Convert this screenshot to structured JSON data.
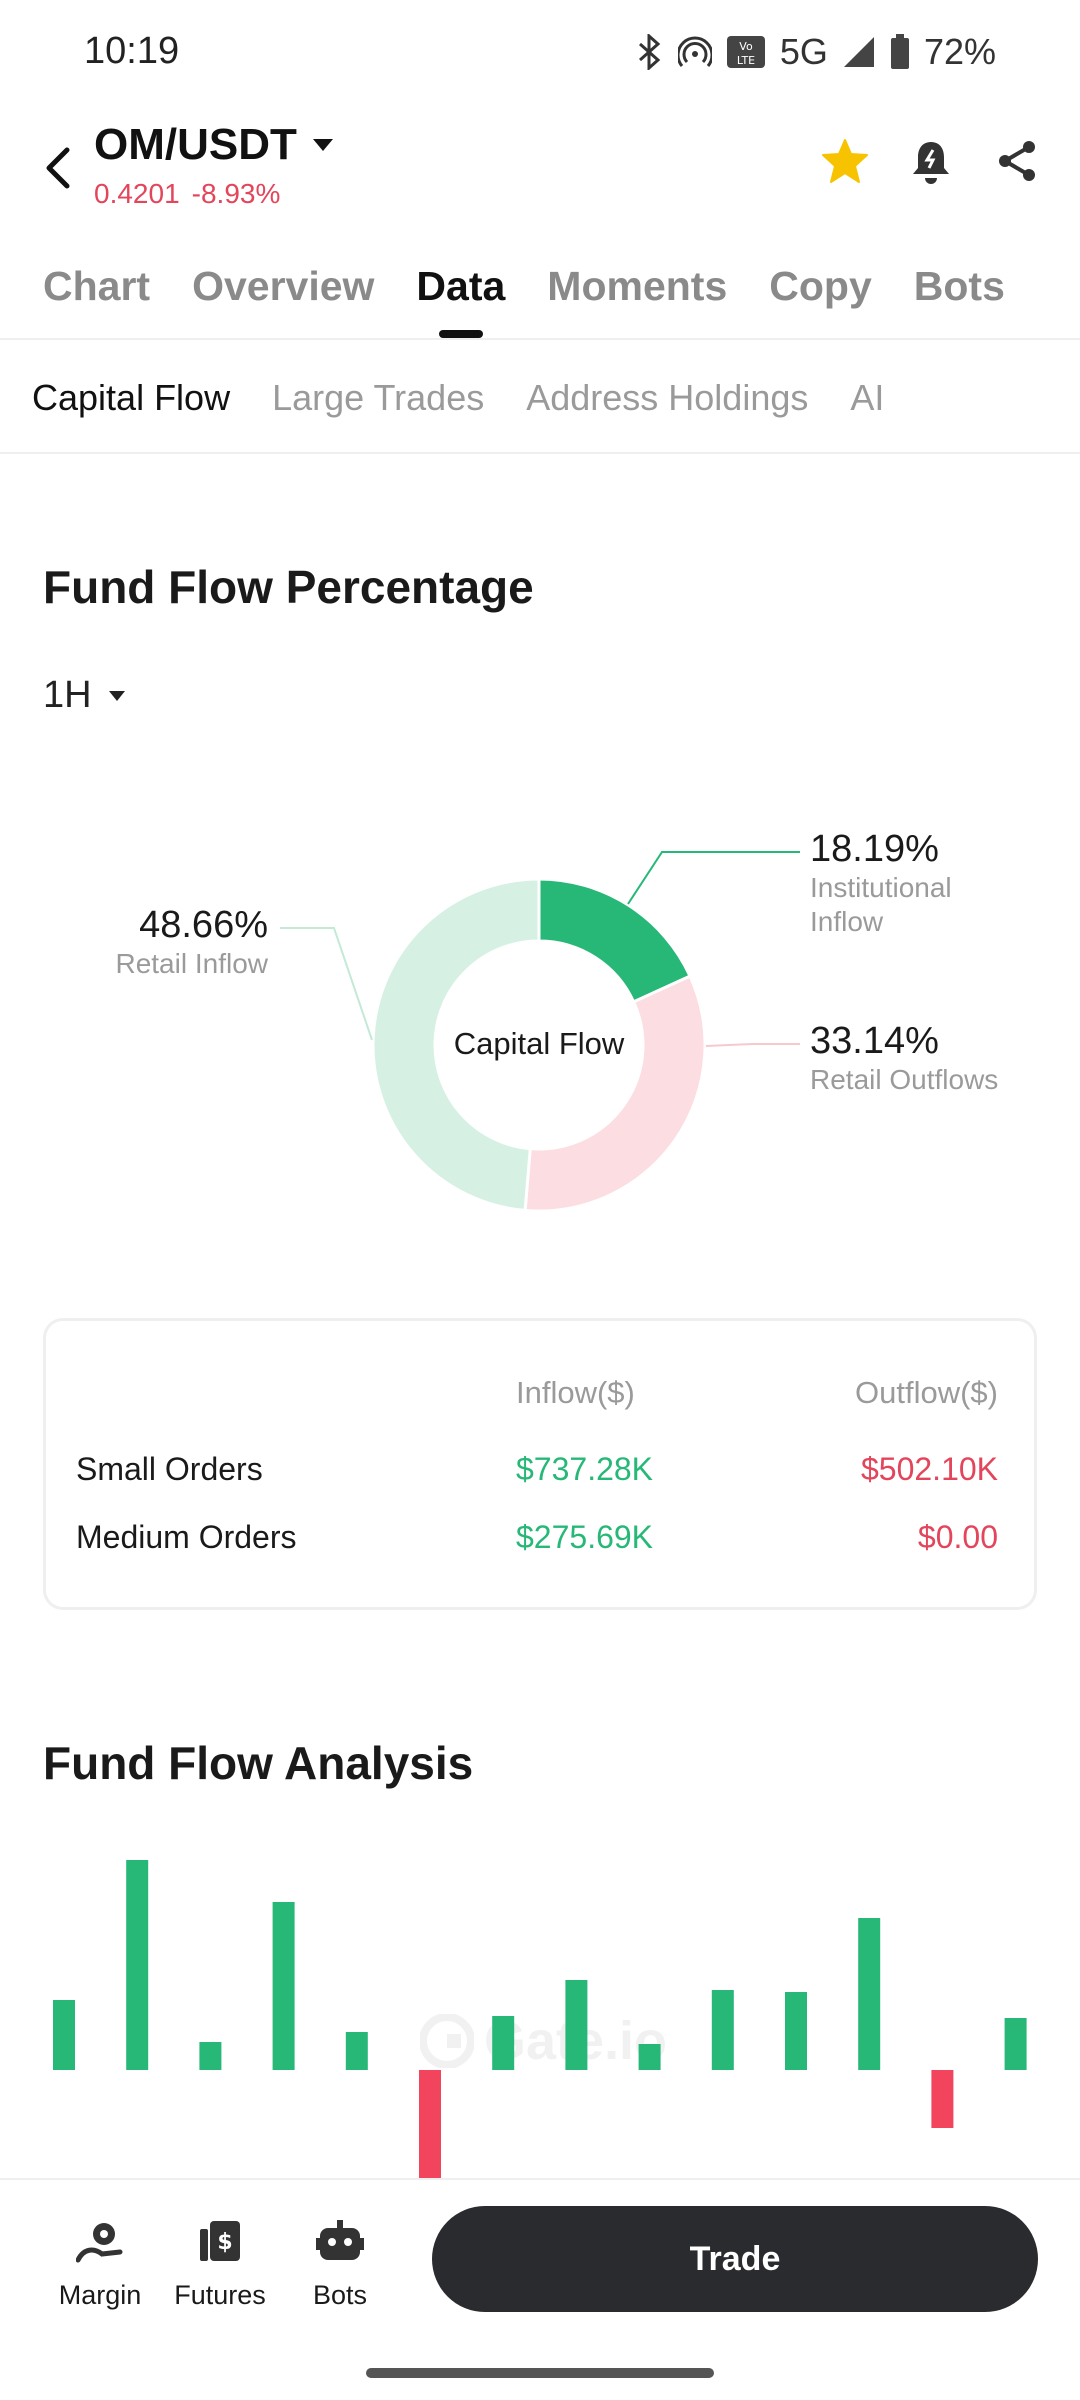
{
  "status_bar": {
    "time": "10:19",
    "network": "5G",
    "volte": "Vo LTE",
    "battery": "72%",
    "icons": [
      "bluetooth-icon",
      "hotspot-icon",
      "volte-icon",
      "signal-icon",
      "battery-icon"
    ]
  },
  "header": {
    "pair": "OM/USDT",
    "price": "0.4201",
    "change": "-8.93%",
    "price_color": "#e3455a",
    "icons": [
      "back-arrow-icon",
      "chevron-down-icon",
      "star-icon",
      "bell-icon",
      "share-icon"
    ],
    "favorite_color": "#f7c300"
  },
  "main_tabs": [
    {
      "label": "Chart",
      "active": false
    },
    {
      "label": "Overview",
      "active": false
    },
    {
      "label": "Data",
      "active": true
    },
    {
      "label": "Moments",
      "active": false
    },
    {
      "label": "Copy",
      "active": false
    },
    {
      "label": "Bots",
      "active": false
    }
  ],
  "sub_tabs": [
    {
      "label": "Capital Flow",
      "active": true
    },
    {
      "label": "Large Trades",
      "active": false
    },
    {
      "label": "Address Holdings",
      "active": false
    },
    {
      "label": "AI",
      "active": false
    }
  ],
  "fund_flow_percentage": {
    "title": "Fund Flow Percentage",
    "period": "1H",
    "center_label": "Capital Flow",
    "segments": [
      {
        "pct": "18.19%",
        "label": "Institutional Inflow",
        "value": 18.19,
        "color": "#27b878"
      },
      {
        "pct": "33.14%",
        "label": "Retail Outflows",
        "value": 33.14,
        "color": "#fcdde1"
      },
      {
        "pct": "48.66%",
        "label": "Retail Inflow",
        "value": 48.66,
        "color": "#d6f1e4"
      }
    ]
  },
  "flow_table": {
    "inflow_header": "Inflow($)",
    "outflow_header": "Outflow($)",
    "rows": [
      {
        "name": "Small Orders",
        "inflow": "$737.28K",
        "outflow": "$502.10K"
      },
      {
        "name": "Medium Orders",
        "inflow": "$275.69K",
        "outflow": "$0.00"
      }
    ]
  },
  "fund_flow_analysis": {
    "title": "Fund Flow Analysis",
    "watermark": "Gate.io"
  },
  "chart_data": [
    {
      "type": "pie",
      "title": "Fund Flow Percentage",
      "categories": [
        "Institutional Inflow",
        "Retail Outflows",
        "Retail Inflow"
      ],
      "values": [
        18.19,
        33.14,
        48.66
      ],
      "colors": [
        "#27b878",
        "#fcdde1",
        "#d6f1e4"
      ]
    },
    {
      "type": "bar",
      "title": "Fund Flow Analysis",
      "values": [
        3.5,
        10.5,
        1.4,
        8.4,
        1.9,
        -6.0,
        2.7,
        4.5,
        1.3,
        4.0,
        3.9,
        7.6,
        -2.9,
        2.6
      ],
      "positive_color": "#27b878",
      "negative_color": "#f2445d",
      "ylim": [
        -6.0,
        10.5
      ]
    }
  ],
  "bottom_bar": {
    "items": [
      {
        "label": "Margin",
        "icon": "margin-icon"
      },
      {
        "label": "Futures",
        "icon": "futures-icon"
      },
      {
        "label": "Bots",
        "icon": "bots-icon"
      }
    ],
    "trade_label": "Trade"
  }
}
